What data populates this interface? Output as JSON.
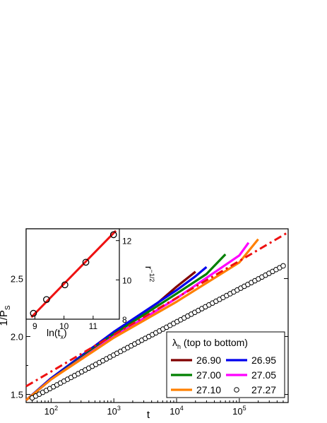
{
  "chart_data": [
    {
      "type": "line",
      "xlabel": "t",
      "ylabel_main": "1/P",
      "ylabel_sub": "S",
      "x_scale": "log",
      "xlim": [
        40,
        600000
      ],
      "ylim": [
        1.43,
        2.93
      ],
      "x_ticks": [
        100,
        1000,
        10000,
        100000
      ],
      "x_tick_labels": [
        {
          "base": "10",
          "exp": "2"
        },
        {
          "base": "10",
          "exp": "3"
        },
        {
          "base": "10",
          "exp": "4"
        },
        {
          "base": "10",
          "exp": "5"
        }
      ],
      "y_ticks": [
        1.5,
        2.0,
        2.5
      ],
      "y_tick_labels": [
        "1.5",
        "2.0",
        "2.5"
      ],
      "legend_title_symbol": "λ",
      "legend_title_sub": "h",
      "legend_title_rest": " (top to bottom)",
      "legend_position": "bottom-right",
      "series": [
        {
          "name": "26.90",
          "color": "#800000",
          "style": "line",
          "x": [
            40,
            100,
            1000,
            5000,
            10000,
            20000
          ],
          "y": [
            1.45,
            1.64,
            2.04,
            2.29,
            2.43,
            2.56
          ]
        },
        {
          "name": "26.95",
          "color": "#0000ee",
          "style": "line",
          "x": [
            40,
            100,
            1000,
            10000,
            20000,
            30000
          ],
          "y": [
            1.45,
            1.64,
            2.04,
            2.4,
            2.52,
            2.6
          ]
        },
        {
          "name": "27.00",
          "color": "#008000",
          "style": "line",
          "x": [
            40,
            100,
            1000,
            10000,
            30000,
            60000
          ],
          "y": [
            1.45,
            1.63,
            2.02,
            2.37,
            2.54,
            2.71
          ]
        },
        {
          "name": "27.05",
          "color": "#ff00ff",
          "style": "line",
          "x": [
            40,
            100,
            1000,
            10000,
            100000,
            140000
          ],
          "y": [
            1.45,
            1.63,
            2.0,
            2.33,
            2.7,
            2.81
          ]
        },
        {
          "name": "27.10",
          "color": "#ff8000",
          "style": "line",
          "x": [
            40,
            100,
            1000,
            10000,
            100000,
            200000
          ],
          "y": [
            1.45,
            1.63,
            1.99,
            2.3,
            2.64,
            2.84
          ]
        },
        {
          "name": "27.27",
          "color": "#000000",
          "style": "markers",
          "x_start": 50,
          "x_end": 500000,
          "y_start": 1.47,
          "y_end": 2.61,
          "count": 72
        },
        {
          "name": "",
          "color": "#ee1111",
          "style": "dash-dot",
          "x": [
            40,
            600000
          ],
          "y": [
            1.57,
            2.9
          ]
        }
      ]
    },
    {
      "type": "scatter",
      "xlabel_main": "ln(t",
      "xlabel_sub": "x",
      "xlabel_end": ")",
      "ylabel_main": "r",
      "ylabel_sup": "−1/2",
      "xlim": [
        8.7,
        11.9
      ],
      "ylim": [
        8.0,
        12.6
      ],
      "x_ticks": [
        9,
        10,
        11
      ],
      "x_tick_labels": [
        "9",
        "10",
        "11"
      ],
      "y_ticks": [
        8,
        10,
        12
      ],
      "y_tick_labels": [
        "8",
        "10",
        "12"
      ],
      "points": {
        "x": [
          8.95,
          9.4,
          10.03,
          10.75,
          11.7
        ],
        "y": [
          8.3,
          9.0,
          9.75,
          10.9,
          12.3
        ]
      },
      "fit_line": {
        "x": [
          8.88,
          11.78
        ],
        "y": [
          8.1,
          12.5
        ],
        "color": "#ee1111"
      }
    }
  ]
}
